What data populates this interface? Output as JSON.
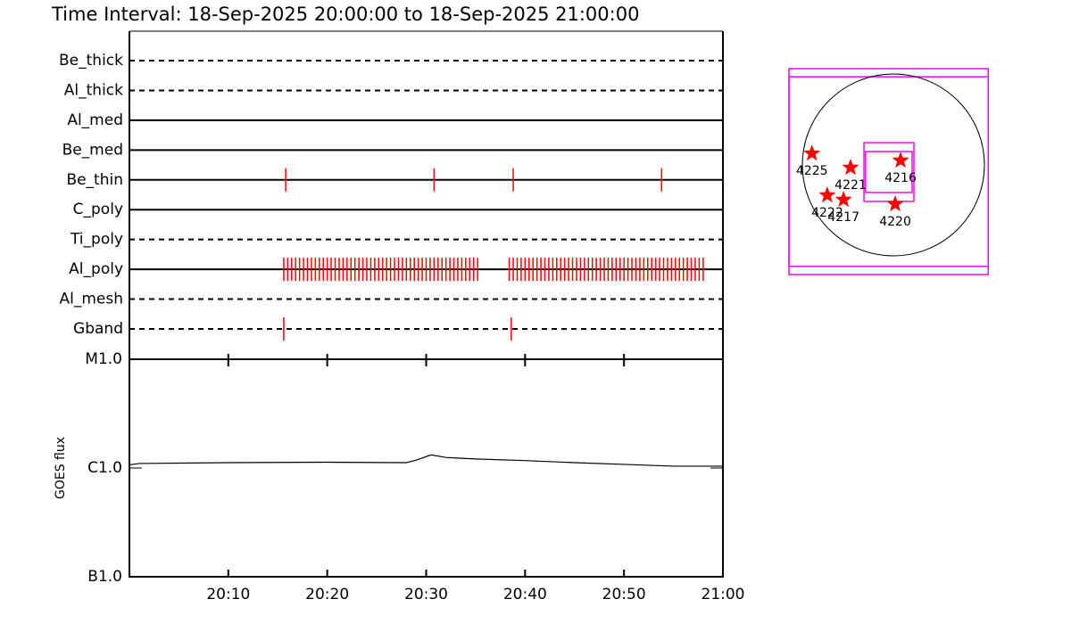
{
  "chart_data": [
    {
      "type": "timeline",
      "title": "Time Interval: 18-Sep-2025 20:00:00 to 18-Sep-2025 21:00:00",
      "xlim": [
        0,
        60
      ],
      "color": "#ff0000",
      "filters": [
        {
          "name": "Be_thick",
          "style": "dashed",
          "events": []
        },
        {
          "name": "Al_thick",
          "style": "dashed",
          "events": []
        },
        {
          "name": "Al_med",
          "style": "solid",
          "events": []
        },
        {
          "name": "Be_med",
          "style": "solid",
          "events": []
        },
        {
          "name": "Be_thin",
          "style": "solid",
          "events": [
            15.8,
            30.8,
            38.8,
            53.8
          ]
        },
        {
          "name": "C_poly",
          "style": "solid",
          "events": []
        },
        {
          "name": "Ti_poly",
          "style": "dashed",
          "events": []
        },
        {
          "name": "Al_poly",
          "style": "solid",
          "events": [
            15.6,
            16,
            16.4,
            16.8,
            17.2,
            17.6,
            18,
            18.4,
            18.8,
            19.2,
            19.6,
            20,
            20.4,
            20.8,
            21.2,
            21.6,
            22,
            22.4,
            22.8,
            23.2,
            23.6,
            24,
            24.4,
            24.8,
            25.2,
            25.6,
            26,
            26.4,
            26.8,
            27.2,
            27.6,
            28,
            28.4,
            28.8,
            29.2,
            29.6,
            30,
            30.4,
            30.8,
            31.2,
            31.6,
            32,
            32.4,
            32.8,
            33.2,
            33.6,
            34,
            34.4,
            34.8,
            35.2,
            38.4,
            38.8,
            39.2,
            39.6,
            40,
            40.4,
            40.8,
            41.2,
            41.6,
            42,
            42.4,
            42.8,
            43.2,
            43.6,
            44,
            44.4,
            44.8,
            45.2,
            45.6,
            46,
            46.4,
            46.8,
            47.2,
            47.6,
            48,
            48.4,
            48.8,
            49.2,
            49.6,
            50,
            50.4,
            50.8,
            51.2,
            51.6,
            52,
            52.4,
            52.8,
            53.2,
            53.6,
            54,
            54.4,
            54.8,
            55.2,
            55.6,
            56,
            56.4,
            56.8,
            57.2,
            57.6,
            58
          ]
        },
        {
          "name": "Al_mesh",
          "style": "dashed",
          "events": []
        },
        {
          "name": "Gband",
          "style": "dashed",
          "events": [
            15.6,
            38.6
          ]
        }
      ]
    },
    {
      "type": "line",
      "ylabel": "GOES flux",
      "log_scale": true,
      "color": "#000000",
      "xlim": [
        0,
        60
      ],
      "xticks": [
        {
          "value": 10,
          "label": "20:10"
        },
        {
          "value": 20,
          "label": "20:20"
        },
        {
          "value": 30,
          "label": "20:30"
        },
        {
          "value": 40,
          "label": "20:40"
        },
        {
          "value": 50,
          "label": "20:50"
        },
        {
          "value": 60,
          "label": "21:00"
        }
      ],
      "ylim": [
        1e-07,
        1e-05
      ],
      "yticks": [
        {
          "value": 1e-07,
          "label": "B1.0"
        },
        {
          "value": 1e-06,
          "label": "C1.0"
        },
        {
          "value": 1e-05,
          "label": "M1.0"
        }
      ],
      "x": [
        0,
        1,
        10,
        20,
        28,
        29,
        30.5,
        32,
        35,
        40,
        45,
        50,
        55,
        60
      ],
      "values": [
        1.07e-06,
        1.1e-06,
        1.12e-06,
        1.13e-06,
        1.12e-06,
        1.18e-06,
        1.32e-06,
        1.25e-06,
        1.21e-06,
        1.17e-06,
        1.12e-06,
        1.08e-06,
        1.04e-06,
        1.04e-06
      ]
    },
    {
      "type": "map",
      "solar_radius": 950,
      "color": "#ff0000",
      "box_color": "#ff00ff",
      "regions": [
        {
          "label": "4225",
          "x": -850,
          "y": 120
        },
        {
          "label": "4221",
          "x": -447,
          "y": -28
        },
        {
          "label": "4216",
          "x": 75,
          "y": 47
        },
        {
          "label": "4222",
          "x": -690,
          "y": -317
        },
        {
          "label": "4217",
          "x": -520,
          "y": -363
        },
        {
          "label": "4220",
          "x": 19,
          "y": -410
        }
      ],
      "fov_boxes": [
        [
          -1090,
          990,
          -1145,
          1005
        ],
        [
          -1090,
          990,
          -1060,
          921
        ],
        [
          -307,
          214,
          -381,
          233
        ],
        [
          -290,
          195,
          -288,
          140
        ]
      ]
    }
  ]
}
